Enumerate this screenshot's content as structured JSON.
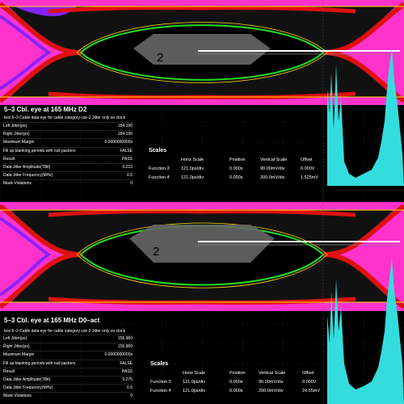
{
  "panels": [
    {
      "id": "top",
      "title": "5–3 Cbl. eye at 165 MHz D2",
      "subtitle": "test 5–3 Cable data eye for cable category cat–2 Jitter only on clock",
      "marker": "2",
      "parameters": [
        {
          "label": "Left Jitter(ps)",
          "value": "184.190"
        },
        {
          "label": "Right Jitter(ps)",
          "value": "184.190"
        },
        {
          "label": "Maximum Margin",
          "value": "0.0000000000s"
        },
        {
          "label": "Fill up blanking periods with null packers",
          "value": "FALSE"
        },
        {
          "label": "Result",
          "value": "PASS"
        },
        {
          "label": "Data Jitter Amplitude(TBit)",
          "value": "0.215"
        },
        {
          "label": "Data Jitter Frequency(MHz)",
          "value": "0.5"
        },
        {
          "label": "Mask Violations",
          "value": "0"
        }
      ],
      "scales": {
        "title": "Scales",
        "headers": [
          "Horiz Scale",
          "Position",
          "Vertical Scale",
          "Offset"
        ],
        "rows": [
          {
            "name": "Function 3",
            "horiz": "121.0ps/div",
            "position": "0.000s",
            "vertical": "90.00mV/div",
            "offset": "0.000V"
          },
          {
            "name": "Function 4",
            "horiz": "121.0ps/div",
            "position": "0.000s",
            "vertical": "200.0mV/div",
            "offset": "1.525mV"
          }
        ]
      }
    },
    {
      "id": "bottom",
      "title": "5–3 Cbl. eye at 165 MHz D0–act",
      "subtitle": "test 5–3 Cable data eye for cable category cat–2 Jitter only on clock",
      "marker": "2",
      "parameters": [
        {
          "label": "Left Jitter(ps)",
          "value": "155.960"
        },
        {
          "label": "Right Jitter(ps)",
          "value": "155.960"
        },
        {
          "label": "Maximum Margin",
          "value": "0.0000000000s"
        },
        {
          "label": "Fill up blanking periods with null packers",
          "value": "FALSE"
        },
        {
          "label": "Result",
          "value": "PASS"
        },
        {
          "label": "Data Jitter Amplitude(TBit)",
          "value": "0.275"
        },
        {
          "label": "Data Jitter Frequency(MHz)",
          "value": "0.5"
        },
        {
          "label": "Mask Violations",
          "value": "0"
        }
      ],
      "scales": {
        "title": "Scales",
        "headers": [
          "Horiz Scale",
          "Position",
          "Vertical Scale",
          "Offset"
        ],
        "rows": [
          {
            "name": "Function 3",
            "horiz": "121.0ps/div",
            "position": "0.000s",
            "vertical": "90.00mV/div",
            "offset": "0.000V"
          },
          {
            "name": "Function 4",
            "horiz": "121.0ps/div",
            "position": "0.000s",
            "vertical": "200.0mV/div",
            "offset": "24.55mV"
          }
        ]
      }
    }
  ],
  "colors": {
    "eye_magenta": "#ff33cc",
    "eye_red": "#dd1111",
    "eye_violet": "#8822ff",
    "eye_green": "#22dd22",
    "eye_yellow": "#ffdd00",
    "histogram": "#33dddd",
    "mask": "#666666",
    "background": "#000000"
  }
}
